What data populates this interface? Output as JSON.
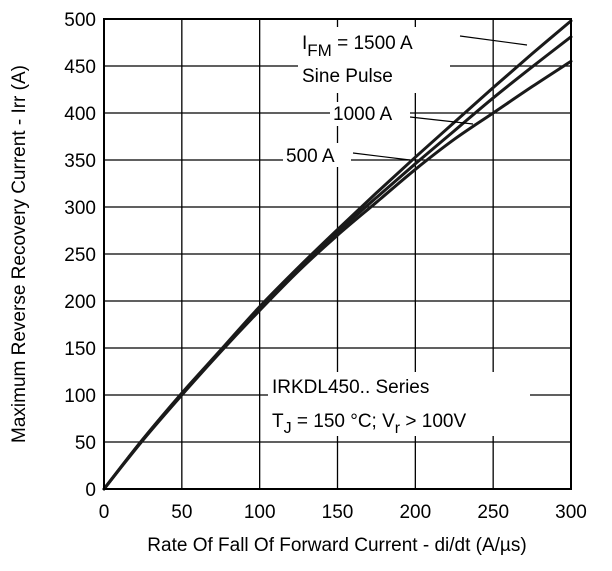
{
  "chart_data": {
    "type": "line",
    "title": "",
    "xlabel": "Rate Of Fall Of Forward Current - di/dt (A/µs)",
    "ylabel": "Maximum Reverse Recovery Current - Irr (A)",
    "xlim": [
      0,
      300
    ],
    "ylim": [
      0,
      500
    ],
    "x_ticks": [
      0,
      50,
      100,
      150,
      200,
      250,
      300
    ],
    "y_ticks": [
      0,
      50,
      100,
      150,
      200,
      250,
      300,
      350,
      400,
      450,
      500
    ],
    "grid": true,
    "legend": "none",
    "series": [
      {
        "name": "500 A",
        "x": [
          0,
          25,
          50,
          75,
          100,
          125,
          150,
          175,
          200,
          225,
          250,
          275,
          300
        ],
        "y": [
          0,
          52,
          100,
          146,
          190,
          232,
          270,
          305,
          340,
          372,
          400,
          428,
          455
        ]
      },
      {
        "name": "1000 A",
        "x": [
          0,
          25,
          50,
          75,
          100,
          125,
          150,
          175,
          200,
          225,
          250,
          275,
          300
        ],
        "y": [
          0,
          53,
          101,
          147,
          192,
          234,
          273,
          310,
          346,
          381,
          416,
          449,
          481
        ]
      },
      {
        "name": "1500 A",
        "x": [
          0,
          25,
          50,
          75,
          100,
          125,
          150,
          175,
          200,
          225,
          250,
          275,
          300
        ],
        "y": [
          0,
          53,
          102,
          148,
          194,
          236,
          276,
          315,
          353,
          390,
          427,
          463,
          498
        ]
      }
    ],
    "annotations": {
      "ifm_main": "I",
      "ifm_sub": "FM",
      "ifm_value": " = 1500 A",
      "sine_pulse": "Sine Pulse",
      "label_1000": "1000 A",
      "label_500": "500 A",
      "series_title": "IRKDL450.. Series",
      "tj_main": "T",
      "tj_sub": "J",
      "tj_mid": " = 150 °C; V",
      "vr_sub": "r",
      "vr_tail": " > 100V"
    }
  }
}
